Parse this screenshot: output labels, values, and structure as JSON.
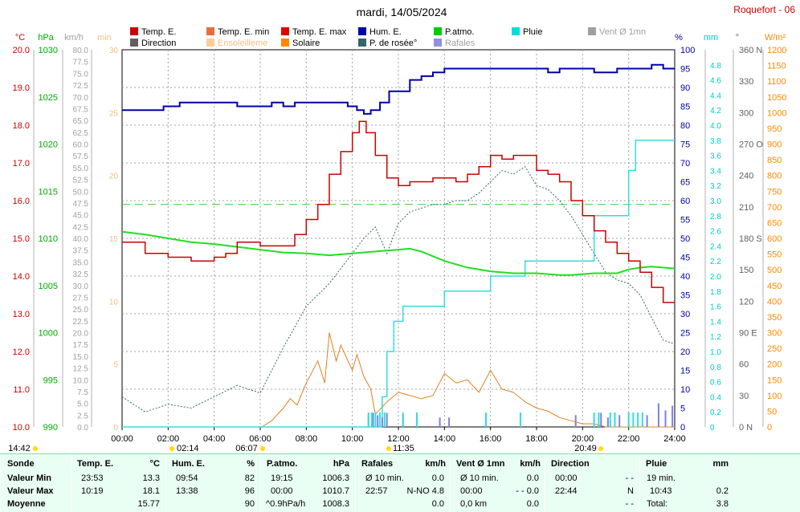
{
  "header": {
    "title": "mardi, 14/05/2024",
    "station": "Roquefort - 06"
  },
  "legend": [
    {
      "label": "Temp. E.",
      "color": "#cc0000"
    },
    {
      "label": "Temp. E. min",
      "color": "#e07040"
    },
    {
      "label": "Temp. E. max",
      "color": "#e00000"
    },
    {
      "label": "Hum. E.",
      "color": "#0000aa"
    },
    {
      "label": "P.atmo.",
      "color": "#00cc00"
    },
    {
      "label": "Pluie",
      "color": "#00dddd"
    },
    {
      "label": "Vent Ø 1mn",
      "color": "#a0a0a0"
    },
    {
      "label": "Direction",
      "color": "#606060"
    },
    {
      "label": "Ensoleilleme",
      "color": "#ffcc99"
    },
    {
      "label": "Solaire",
      "color": "#ff8800"
    },
    {
      "label": "P. de rosée°",
      "color": "#336666"
    },
    {
      "label": "Rafales",
      "color": "#9090e0"
    }
  ],
  "axes": {
    "left_units": [
      "°C",
      "hPa",
      "km/h",
      "min"
    ],
    "right_units": [
      "%",
      "mm",
      "°",
      "W/m²"
    ],
    "temp_ticks": [
      "20.0",
      "19.0",
      "18.0",
      "17.0",
      "16.0",
      "15.0",
      "14.0",
      "13.0",
      "12.0",
      "11.0",
      "10.0"
    ],
    "press_ticks": [
      "1030",
      "1025",
      "1020",
      "1015",
      "1010",
      "1005",
      "1000",
      "995",
      "990"
    ],
    "wind_ticks": [
      "80.0",
      "77.5",
      "75.0",
      "72.5",
      "70.0",
      "67.5",
      "65.0",
      "62.5",
      "60.0",
      "57.5",
      "55.0",
      "52.5",
      "50.0",
      "47.5",
      "45.0",
      "42.5",
      "40.0",
      "37.5",
      "35.0",
      "32.5",
      "30.0",
      "27.5",
      "25.0",
      "22.5",
      "20.0",
      "17.5",
      "15.0",
      "12.5",
      "10.0",
      "7.5",
      "5.0",
      "2.5",
      "0.0"
    ],
    "min_ticks": [
      "30",
      "25",
      "20",
      "15",
      "10",
      "5",
      "0"
    ],
    "hum_ticks": [
      "100",
      "95",
      "90",
      "85",
      "80",
      "75",
      "70",
      "65",
      "60",
      "55",
      "50",
      "45",
      "40",
      "35",
      "30",
      "25",
      "20",
      "15",
      "10",
      "5",
      "0"
    ],
    "rain_ticks": [
      "4.8",
      "4.6",
      "4.4",
      "4.2",
      "4.0",
      "3.8",
      "3.6",
      "3.4",
      "3.2",
      "3.0",
      "2.8",
      "2.6",
      "2.4",
      "2.2",
      "2.0",
      "1.8",
      "1.6",
      "1.4",
      "1.2",
      "1.0",
      "0.8",
      "0.6",
      "0.4",
      "0.2",
      "0"
    ],
    "dir_ticks": [
      "360 N",
      "330",
      "300",
      "270 O",
      "240",
      "210",
      "180 S",
      "150",
      "120",
      "90 E",
      "60",
      "30",
      "0 N"
    ],
    "solar_ticks": [
      "1200",
      "1150",
      "1100",
      "1050",
      "1000",
      "950",
      "900",
      "850",
      "800",
      "750",
      "700",
      "650",
      "600",
      "550",
      "500",
      "450",
      "400",
      "350",
      "300",
      "250",
      "200",
      "150",
      "100",
      "50",
      "0"
    ],
    "time_ticks": [
      "00:00",
      "02:00",
      "04:00",
      "06:00",
      "08:00",
      "10:00",
      "12:00",
      "14:00",
      "16:00",
      "18:00",
      "20:00",
      "22:00",
      "24:00"
    ]
  },
  "markers": {
    "day_length": "14:42",
    "dir_time": "02:14",
    "sunrise": "06:07",
    "solar_noon": "11:35",
    "sunset": "20:49"
  },
  "chart_data": {
    "type": "line",
    "x_unit": "hours",
    "series": [
      {
        "name": "Temp. E.",
        "unit": "°C",
        "x": [
          0,
          1,
          2,
          2.5,
          3,
          3.5,
          4,
          4.5,
          5,
          5.5,
          6,
          6.5,
          7,
          7.5,
          8,
          8.5,
          9,
          9.5,
          10,
          10.3,
          10.6,
          11,
          11.5,
          12,
          12.5,
          13,
          13.5,
          14,
          14.5,
          15,
          15.5,
          16,
          16.5,
          17,
          17.5,
          18,
          18.5,
          19,
          19.5,
          20,
          20.5,
          21,
          21.5,
          22,
          22.5,
          23,
          23.5,
          24
        ],
        "y": [
          14.9,
          14.6,
          14.5,
          14.5,
          14.4,
          14.4,
          14.5,
          14.6,
          14.9,
          14.9,
          14.8,
          14.8,
          14.8,
          15.1,
          15.5,
          15.9,
          16.7,
          17.3,
          17.8,
          18.1,
          17.8,
          17.2,
          16.6,
          16.4,
          16.5,
          16.5,
          16.6,
          16.6,
          16.5,
          16.7,
          16.9,
          17.2,
          17.1,
          17.2,
          17.2,
          16.8,
          16.7,
          16.5,
          16.0,
          15.6,
          15.2,
          14.9,
          14.6,
          14.4,
          14.1,
          13.7,
          13.3,
          13.3
        ]
      },
      {
        "name": "Hum. E.",
        "unit": "%",
        "x": [
          0,
          1,
          1.8,
          2.5,
          3,
          4,
          5,
          6,
          6.5,
          7,
          7.5,
          8,
          8.5,
          9,
          9.5,
          9.8,
          10.2,
          10.5,
          10.8,
          11.2,
          11.6,
          12,
          12.5,
          13,
          13.5,
          14,
          15,
          16,
          17,
          18,
          18.5,
          19,
          19.5,
          20,
          20.5,
          21,
          21.5,
          22,
          22.5,
          23,
          23.5,
          24
        ],
        "y": [
          84,
          84,
          85,
          86,
          86,
          86,
          85,
          85,
          86,
          85,
          86,
          86,
          86,
          86,
          86,
          85,
          84,
          83,
          84,
          86,
          89,
          89,
          92,
          93,
          94,
          95,
          95,
          95,
          95,
          95,
          94,
          95,
          95,
          95,
          94,
          94,
          95,
          95,
          95,
          96,
          95,
          95
        ]
      },
      {
        "name": "P.atmo.",
        "unit": "hPa",
        "x": [
          0,
          1,
          2,
          3,
          4,
          5,
          6,
          7,
          8,
          9,
          10,
          11,
          12,
          12.5,
          13,
          13.5,
          14,
          15,
          16,
          17,
          18,
          19,
          19.5,
          20,
          20.5,
          21,
          21.5,
          22,
          22.5,
          23,
          23.5,
          24
        ],
        "y": [
          1010.7,
          1010.4,
          1010.0,
          1009.6,
          1009.4,
          1009.1,
          1008.8,
          1008.5,
          1008.4,
          1008.2,
          1008.4,
          1008.6,
          1008.8,
          1008.9,
          1008.6,
          1008.1,
          1007.6,
          1006.9,
          1006.5,
          1006.3,
          1006.3,
          1006.1,
          1006.1,
          1006.2,
          1006.3,
          1006.3,
          1006.3,
          1006.7,
          1006.9,
          1007.0,
          1006.9,
          1006.8
        ]
      },
      {
        "name": "P. de rosée°",
        "unit": "°C",
        "x": [
          0,
          1,
          2,
          3,
          4,
          5,
          6,
          7,
          8,
          9,
          10,
          10.5,
          11,
          11.5,
          12,
          12.5,
          13,
          13.5,
          14,
          14.5,
          15,
          15.5,
          16,
          16.5,
          17,
          17.5,
          18,
          18.5,
          19,
          19.5,
          20,
          20.5,
          21,
          21.5,
          22,
          22.5,
          23,
          23.5,
          24
        ],
        "y": [
          10.8,
          10.4,
          10.6,
          10.5,
          10.8,
          11.1,
          10.9,
          12.1,
          13.2,
          13.8,
          14.6,
          15.0,
          15.3,
          14.6,
          15.4,
          15.7,
          15.8,
          15.9,
          15.9,
          16.0,
          16.0,
          16.2,
          16.5,
          16.8,
          16.7,
          16.9,
          16.4,
          16.3,
          16.0,
          15.6,
          15.1,
          14.6,
          14.1,
          13.9,
          13.8,
          13.5,
          12.9,
          12.3,
          12.2
        ]
      },
      {
        "name": "Pluie",
        "unit": "mm",
        "x": [
          0,
          11.0,
          11.3,
          11.5,
          11.8,
          12.2,
          13.0,
          14.0,
          15.0,
          15.5,
          16.0,
          17.5,
          19.5,
          20.2,
          20.5,
          21.0,
          21.5,
          22.0,
          22.3,
          24
        ],
        "y": [
          0,
          0,
          0.4,
          1.0,
          1.4,
          1.6,
          1.6,
          1.8,
          1.8,
          1.8,
          2.0,
          2.2,
          2.2,
          2.2,
          2.8,
          2.8,
          2.8,
          3.4,
          3.8,
          3.8
        ]
      },
      {
        "name": "Solaire",
        "unit": "W/m²",
        "x": [
          6.07,
          6.5,
          7,
          7.3,
          7.6,
          8,
          8.5,
          8.8,
          9,
          9.3,
          9.5,
          10,
          10.2,
          10.5,
          10.8,
          11,
          11.5,
          12,
          12.5,
          13,
          13.5,
          14,
          14.5,
          15,
          15.5,
          16,
          16.5,
          17,
          17.5,
          18,
          18.5,
          19,
          19.5,
          20,
          20.5,
          21,
          22,
          23,
          24
        ],
        "y": [
          0,
          20,
          60,
          90,
          70,
          140,
          210,
          140,
          300,
          210,
          260,
          180,
          230,
          160,
          120,
          40,
          80,
          110,
          100,
          90,
          100,
          170,
          140,
          150,
          110,
          180,
          120,
          110,
          80,
          60,
          50,
          30,
          20,
          10,
          10,
          0,
          0,
          0,
          0
        ]
      },
      {
        "name": "Rafales",
        "unit": "km/h",
        "x": [
          10.7,
          10.9,
          11.1,
          11.3,
          11.5,
          12.2,
          12.8,
          13.8,
          14.2,
          15.8,
          19.7,
          20.8,
          21.1,
          21.6,
          22.8,
          23.3,
          23.6,
          23.9
        ],
        "y": [
          2.5,
          3.0,
          2.5,
          2.0,
          3.0,
          2.5,
          2.5,
          2.0,
          2.0,
          2.5,
          2.5,
          3.0,
          2.0,
          2.5,
          2.5,
          5.0,
          3.5,
          4.5
        ]
      }
    ]
  },
  "stats": {
    "sonde": {
      "header": "Sonde",
      "rows": [
        "Valeur Min",
        "Valeur Max",
        "Moyenne"
      ]
    },
    "temp": {
      "header": "Temp. E.",
      "unit": "°C",
      "rows": [
        [
          "23:53",
          "13.3"
        ],
        [
          "10:19",
          "18.1"
        ],
        [
          "",
          "15.77"
        ]
      ]
    },
    "hum": {
      "header": "Hum. E.",
      "unit": "%",
      "rows": [
        [
          "09:54",
          "82"
        ],
        [
          "13:38",
          "96"
        ],
        [
          "",
          "90"
        ]
      ]
    },
    "press": {
      "header": "P.atmo.",
      "unit": "hPa",
      "rows": [
        [
          "19:15",
          "1006.3"
        ],
        [
          "00:00",
          "1010.7"
        ],
        [
          "^0.9hPa/h",
          "1008.3"
        ]
      ]
    },
    "rafales": {
      "header": "Rafales",
      "unit": "km/h",
      "rows": [
        [
          "Ø 10 min.",
          "0.0"
        ],
        [
          "22:57",
          "N-NO 4.8"
        ],
        [
          "",
          "0.0"
        ]
      ]
    },
    "vent": {
      "header": "Vent Ø 1mn",
      "unit": "km/h",
      "rows": [
        [
          "Ø 10 min.",
          "0.0"
        ],
        [
          "00:00",
          "- - 0.0"
        ],
        [
          "0,0 km",
          "0.0"
        ]
      ]
    },
    "dir": {
      "header": "Direction",
      "unit": "",
      "rows": [
        [
          "00:00",
          "- -"
        ],
        [
          "22:44",
          "N"
        ],
        [
          "",
          "- -"
        ]
      ]
    },
    "pluie": {
      "header": "Pluie",
      "unit": "mm",
      "rows": [
        [
          "19 min.",
          ""
        ],
        [
          "10:43",
          "0.2"
        ],
        [
          "Total:",
          "3.8"
        ]
      ]
    }
  }
}
